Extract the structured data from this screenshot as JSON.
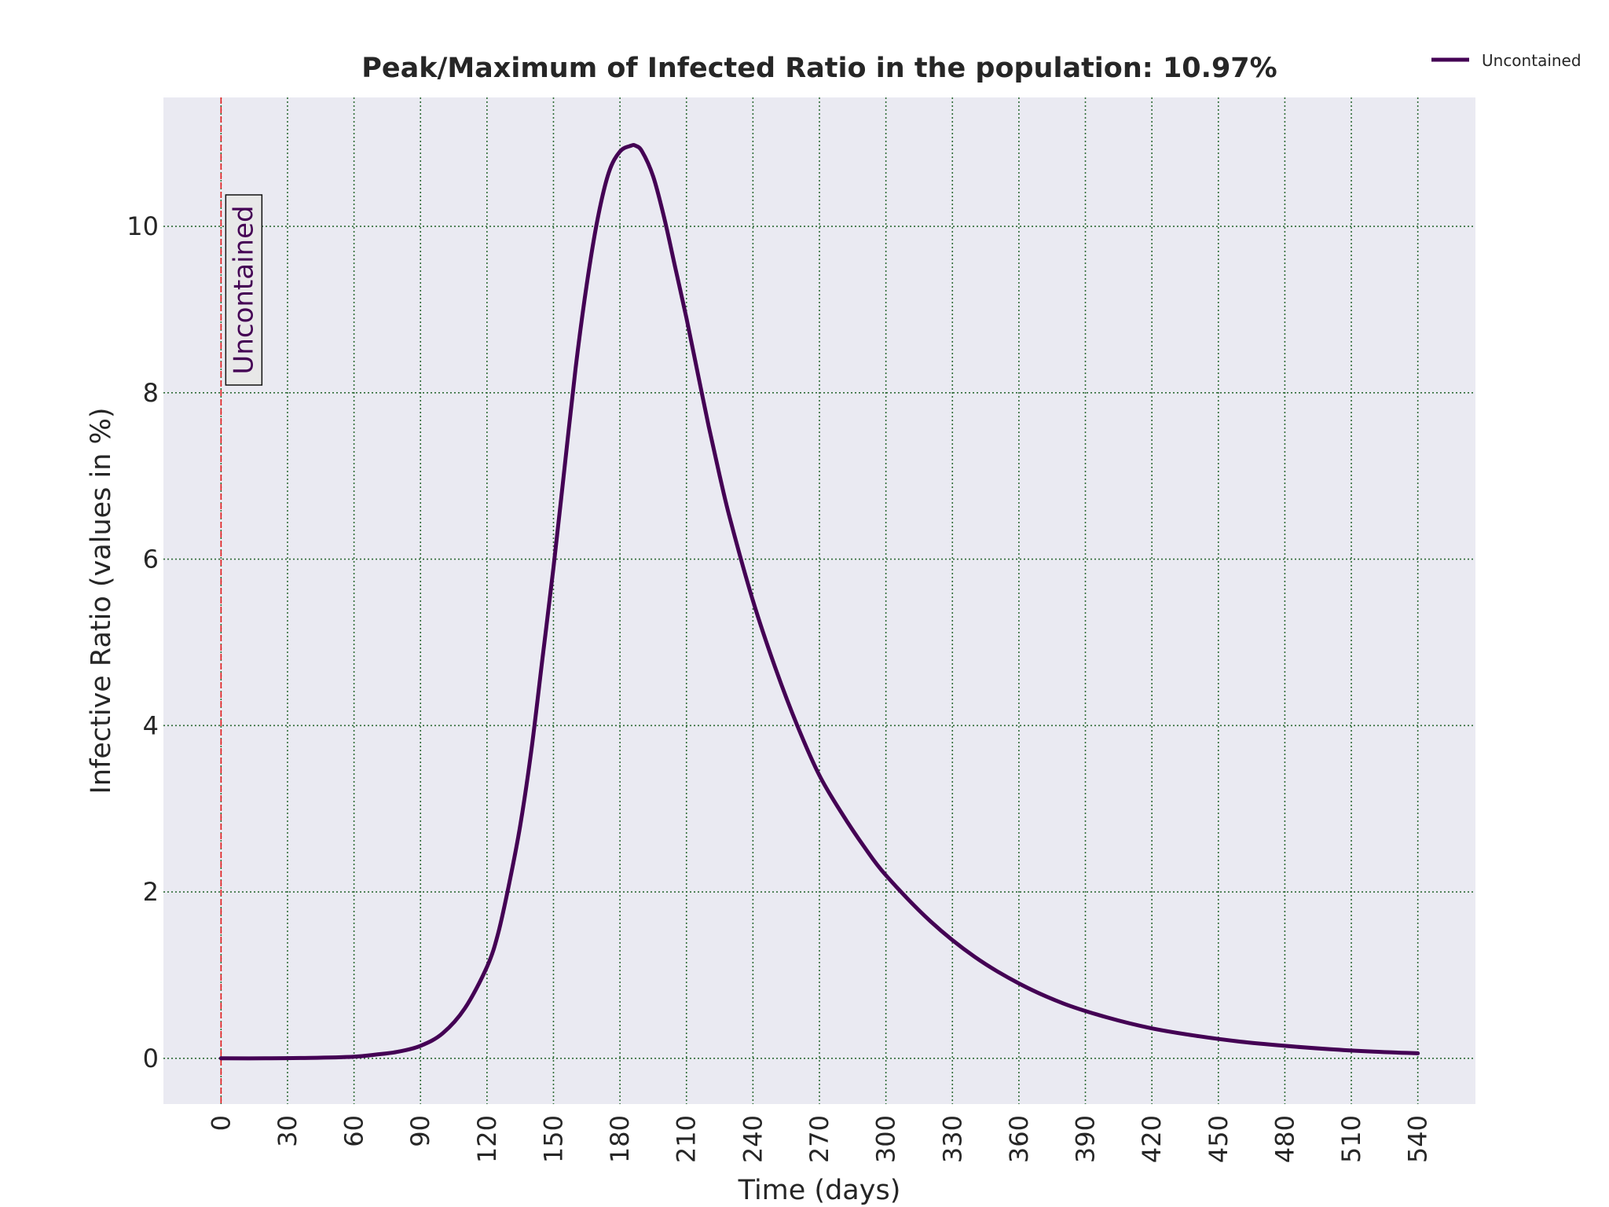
{
  "chart_data": {
    "type": "line",
    "title": "Peak/Maximum of Infected Ratio in the population: 10.97%",
    "xlabel": "Time (days)",
    "ylabel": "Infective Ratio (values in %)",
    "xlim": [
      -26,
      566
    ],
    "ylim": [
      -0.55,
      11.55
    ],
    "xticks": [
      0,
      30,
      60,
      90,
      120,
      150,
      180,
      210,
      240,
      270,
      300,
      330,
      360,
      390,
      420,
      450,
      480,
      510,
      540
    ],
    "yticks": [
      0,
      2,
      4,
      6,
      8,
      10
    ],
    "grid": true,
    "legend_position": "top-right",
    "colors": {
      "plot_background": "#eaeaf2",
      "grid": "#2e6b36",
      "series": "#440154",
      "vline": "#e41a1c",
      "annotation_box": "#e8e8e8"
    },
    "annotations": [
      {
        "x": 0,
        "text": "Uncontained",
        "style": "vertical-dashed-line-with-rotated-label"
      }
    ],
    "series": [
      {
        "name": "Uncontained",
        "x": [
          0,
          20,
          40,
          60,
          70,
          80,
          90,
          100,
          110,
          120,
          125,
          130,
          135,
          140,
          145,
          150,
          155,
          160,
          165,
          170,
          175,
          180,
          185,
          187,
          190,
          195,
          200,
          205,
          210,
          215,
          220,
          225,
          230,
          240,
          250,
          260,
          270,
          280,
          290,
          300,
          320,
          340,
          360,
          380,
          400,
          420,
          440,
          460,
          480,
          500,
          520,
          540
        ],
        "y": [
          0.0,
          0.0,
          0.005,
          0.02,
          0.045,
          0.08,
          0.15,
          0.3,
          0.6,
          1.1,
          1.5,
          2.1,
          2.8,
          3.7,
          4.8,
          5.9,
          7.1,
          8.3,
          9.3,
          10.1,
          10.65,
          10.9,
          10.97,
          10.97,
          10.9,
          10.6,
          10.1,
          9.5,
          8.9,
          8.25,
          7.6,
          7.0,
          6.45,
          5.5,
          4.7,
          4.0,
          3.4,
          2.95,
          2.55,
          2.2,
          1.65,
          1.22,
          0.9,
          0.66,
          0.49,
          0.36,
          0.27,
          0.2,
          0.15,
          0.11,
          0.08,
          0.06
        ]
      }
    ]
  }
}
